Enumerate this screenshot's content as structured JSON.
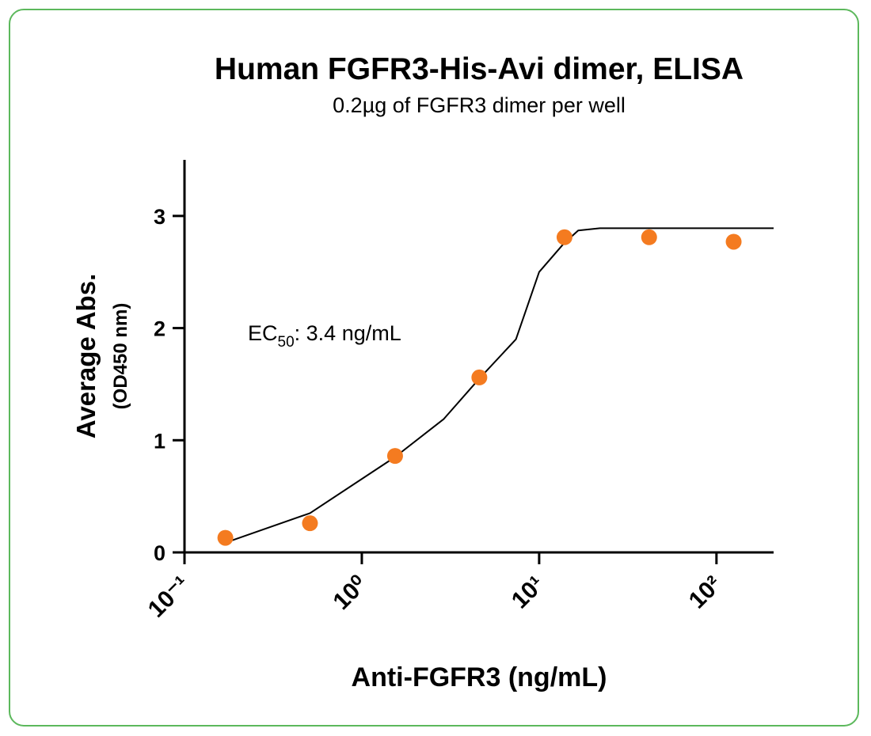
{
  "chart_data": {
    "type": "scatter",
    "title": "Human FGFR3-His-Avi dimer, ELISA",
    "subtitle": "0.2µg of FGFR3 dimer per well",
    "xlabel": "Anti-FGFR3 (ng/mL)",
    "ylabel": "Average Abs.",
    "ylabel_sub": "(OD450 nm)",
    "annotation": {
      "prefix": "EC",
      "subscript": "50",
      "suffix": ": 3.4 ng/mL"
    },
    "xscale": "log",
    "x": [
      0.17,
      0.51,
      1.54,
      4.6,
      13.9,
      41.7,
      125
    ],
    "values": [
      0.13,
      0.26,
      0.86,
      1.56,
      2.81,
      2.81,
      2.77
    ],
    "color": "#f47b20",
    "fit": {
      "color": "#000000",
      "x": [
        0.18,
        0.51,
        1.54,
        2.9,
        4.6,
        7.4,
        10,
        13.7,
        16.6,
        22,
        210
      ],
      "values": [
        0.1,
        0.35,
        0.85,
        1.19,
        1.55,
        1.9,
        2.5,
        2.75,
        2.87,
        2.89,
        2.89
      ]
    },
    "xlim": [
      0.1,
      210
    ],
    "ylim": [
      0,
      3.5
    ],
    "xticks": [
      {
        "value": 0.1,
        "label": "10⁻¹"
      },
      {
        "value": 1,
        "label": "10⁰"
      },
      {
        "value": 10,
        "label": "10¹"
      },
      {
        "value": 100,
        "label": "10²"
      }
    ],
    "yticks": [
      0,
      1,
      2,
      3
    ]
  }
}
